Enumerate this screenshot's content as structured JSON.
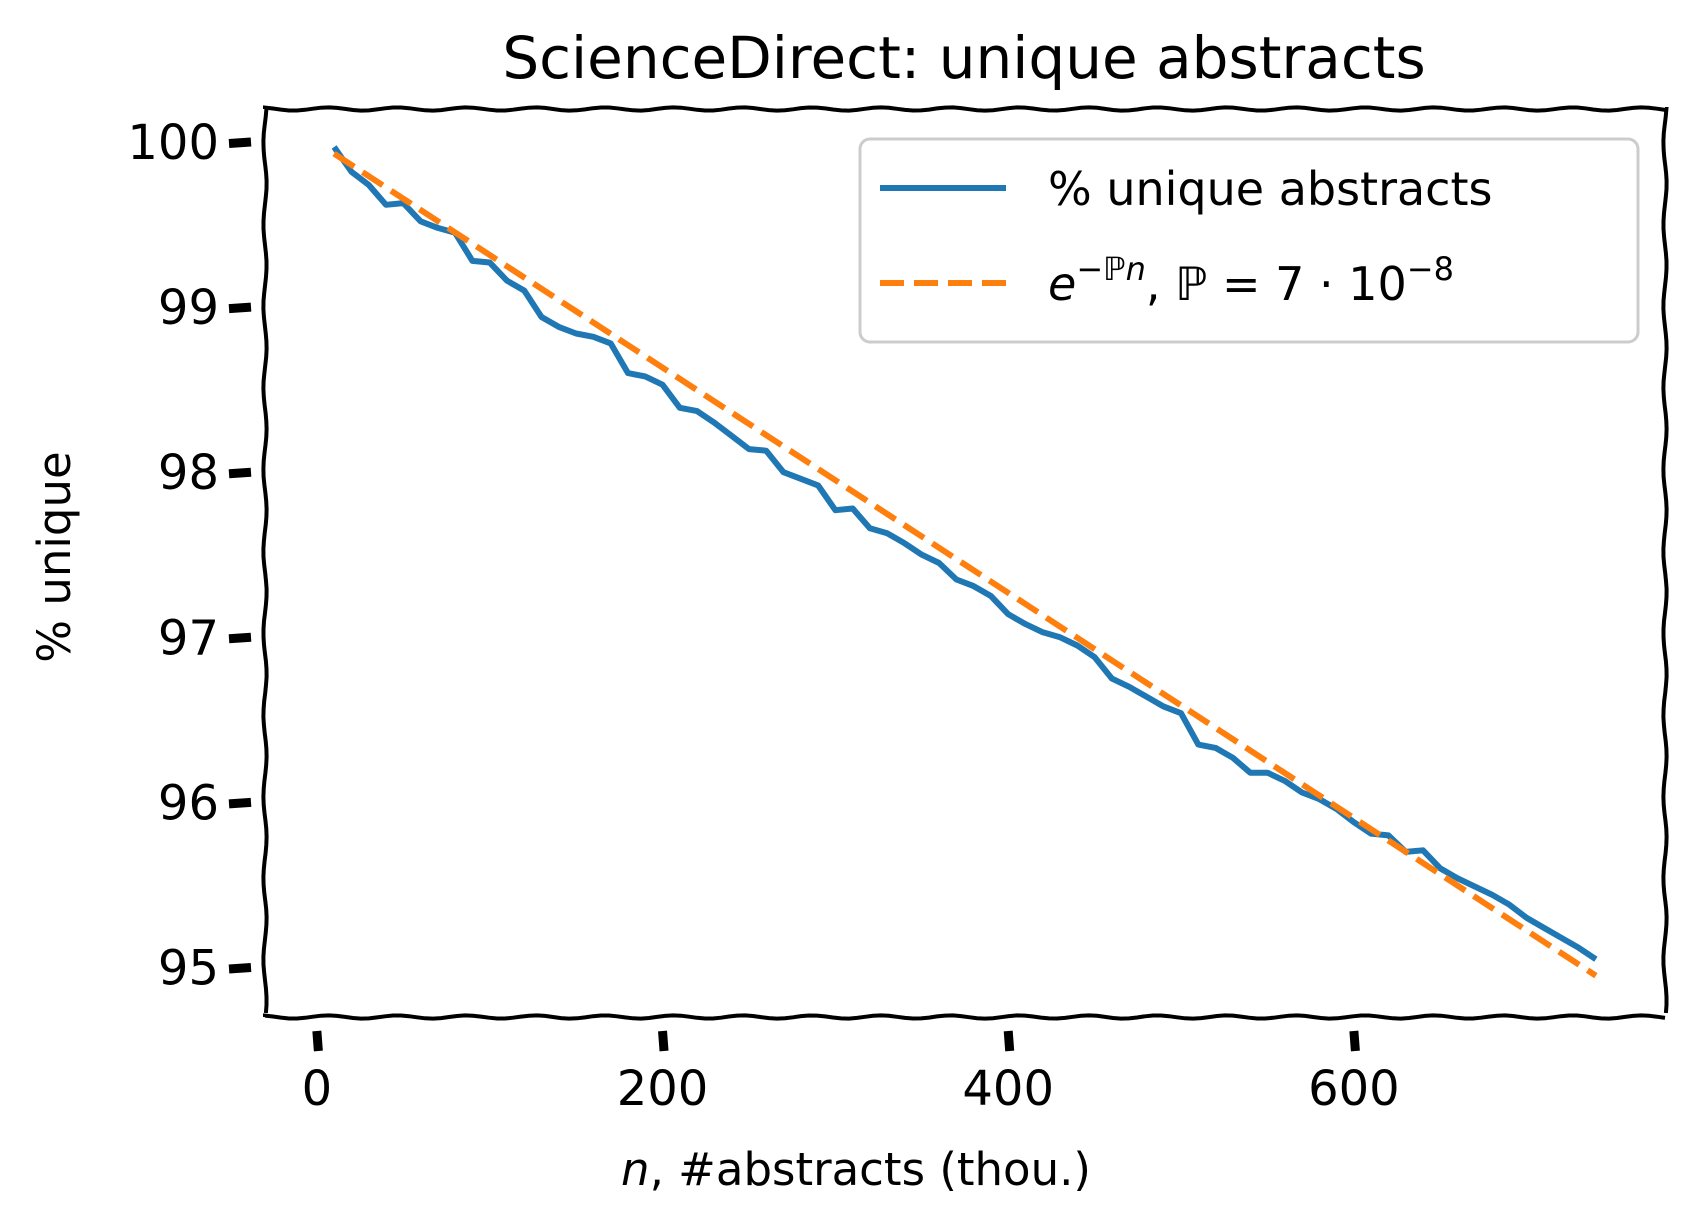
{
  "chart_data": {
    "type": "line",
    "title": "ScienceDirect: unique abstracts",
    "xlabel_var": "n",
    "xlabel_rest": ", #abstracts (thou.)",
    "ylabel": "% unique",
    "xlim": [
      -30,
      780
    ],
    "ylim": [
      94.7,
      100.2
    ],
    "xticks": [
      0,
      200,
      400,
      600
    ],
    "yticks": [
      95,
      96,
      97,
      98,
      99,
      100
    ],
    "grid": false,
    "legend_position": "top-right",
    "colors": {
      "series1": "#1f77b4",
      "series2": "#ff7f0e",
      "axis": "#000000",
      "legend_border": "#cccccc"
    },
    "series": [
      {
        "name": "% unique abstracts",
        "style": "solid",
        "x": [
          10,
          20,
          30,
          40,
          50,
          60,
          70,
          80,
          90,
          100,
          110,
          120,
          130,
          140,
          150,
          160,
          170,
          180,
          190,
          200,
          210,
          220,
          230,
          240,
          250,
          260,
          270,
          280,
          290,
          300,
          310,
          320,
          330,
          340,
          350,
          360,
          370,
          380,
          390,
          400,
          410,
          420,
          430,
          440,
          450,
          460,
          470,
          480,
          490,
          500,
          510,
          520,
          530,
          540,
          550,
          560,
          570,
          580,
          590,
          600,
          610,
          620,
          630,
          640,
          650,
          660,
          670,
          680,
          690,
          700,
          710,
          720,
          730,
          740
        ],
        "y": [
          99.97,
          99.82,
          99.74,
          99.62,
          99.63,
          99.52,
          99.48,
          99.45,
          99.28,
          99.27,
          99.16,
          99.1,
          98.94,
          98.88,
          98.84,
          98.82,
          98.78,
          98.6,
          98.58,
          98.53,
          98.39,
          98.37,
          98.3,
          98.22,
          98.14,
          98.13,
          98.0,
          97.96,
          97.92,
          97.77,
          97.78,
          97.66,
          97.63,
          97.57,
          97.5,
          97.45,
          97.35,
          97.31,
          97.25,
          97.14,
          97.08,
          97.03,
          97.0,
          96.95,
          96.88,
          96.75,
          96.7,
          96.64,
          96.58,
          96.54,
          96.35,
          96.33,
          96.27,
          96.18,
          96.18,
          96.13,
          96.06,
          96.02,
          95.96,
          95.88,
          95.81,
          95.8,
          95.7,
          95.71,
          95.6,
          95.54,
          95.49,
          95.44,
          95.38,
          95.3,
          95.24,
          95.18,
          95.12,
          95.05
        ]
      },
      {
        "name": "e^{-ℙn}, ℙ = 7 · 10^{-8}",
        "style": "dashed",
        "x": [
          10,
          740
        ],
        "y": [
          99.93,
          94.95
        ]
      }
    ]
  },
  "legend": {
    "entry1": "% unique abstracts",
    "entry2_base": "e",
    "entry2_exp": "−ℙn",
    "entry2_mid": ", ℙ = 7 · 10",
    "entry2_exp2": "−8"
  }
}
